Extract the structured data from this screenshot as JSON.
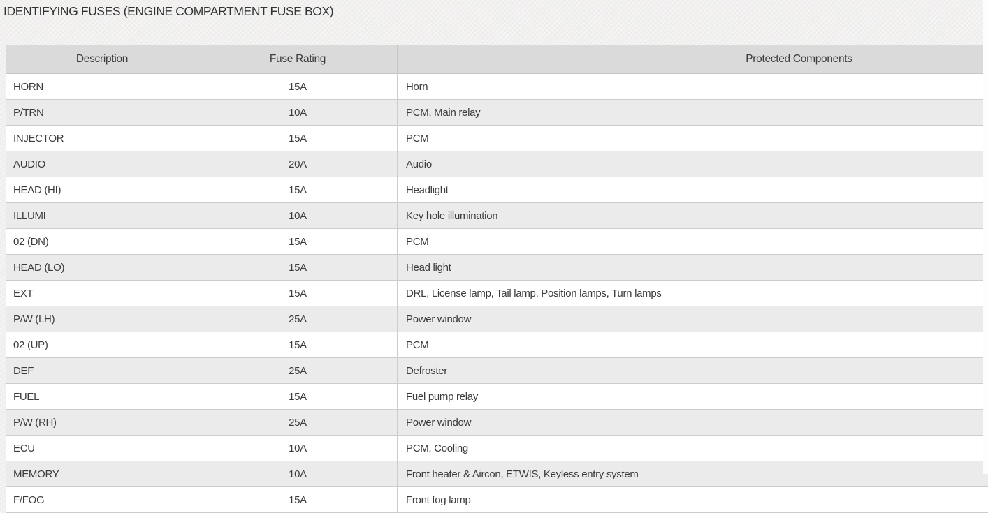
{
  "page": {
    "title": "IDENTIFYING FUSES (ENGINE COMPARTMENT FUSE BOX)"
  },
  "table": {
    "headers": {
      "description": "Description",
      "rating": "Fuse Rating",
      "components": "Protected Components"
    },
    "rows": [
      {
        "description": "HORN",
        "rating": "15A",
        "components": "Horn"
      },
      {
        "description": "P/TRN",
        "rating": "10A",
        "components": "PCM, Main relay"
      },
      {
        "description": "INJECTOR",
        "rating": "15A",
        "components": "PCM"
      },
      {
        "description": "AUDIO",
        "rating": "20A",
        "components": "Audio"
      },
      {
        "description": "HEAD (HI)",
        "rating": "15A",
        "components": "Headlight"
      },
      {
        "description": "ILLUMI",
        "rating": "10A",
        "components": "Key hole illumination"
      },
      {
        "description": "02 (DN)",
        "rating": "15A",
        "components": "PCM"
      },
      {
        "description": "HEAD (LO)",
        "rating": "15A",
        "components": "Head light"
      },
      {
        "description": "EXT",
        "rating": "15A",
        "components": "DRL, License lamp, Tail lamp, Position lamps, Turn lamps"
      },
      {
        "description": "P/W (LH)",
        "rating": "25A",
        "components": "Power window"
      },
      {
        "description": "02 (UP)",
        "rating": "15A",
        "components": "PCM"
      },
      {
        "description": "DEF",
        "rating": "25A",
        "components": "Defroster"
      },
      {
        "description": "FUEL",
        "rating": "15A",
        "components": "Fuel pump relay"
      },
      {
        "description": "P/W (RH)",
        "rating": "25A",
        "components": "Power window"
      },
      {
        "description": "ECU",
        "rating": "10A",
        "components": "PCM, Cooling"
      },
      {
        "description": "MEMORY",
        "rating": "10A",
        "components": "Front heater & Aircon, ETWIS, Keyless entry system"
      },
      {
        "description": "F/FOG",
        "rating": "15A",
        "components": "Front fog lamp"
      }
    ]
  },
  "colors": {
    "header_bg": "#dadada",
    "stripe_row_bg": "#ebebec",
    "row_bg": "#ffffff",
    "border": "#cccccc",
    "text": "#3c3c3c",
    "page_bg": "#f1f0ef",
    "scrollbar_track": "#fdfdfd"
  }
}
